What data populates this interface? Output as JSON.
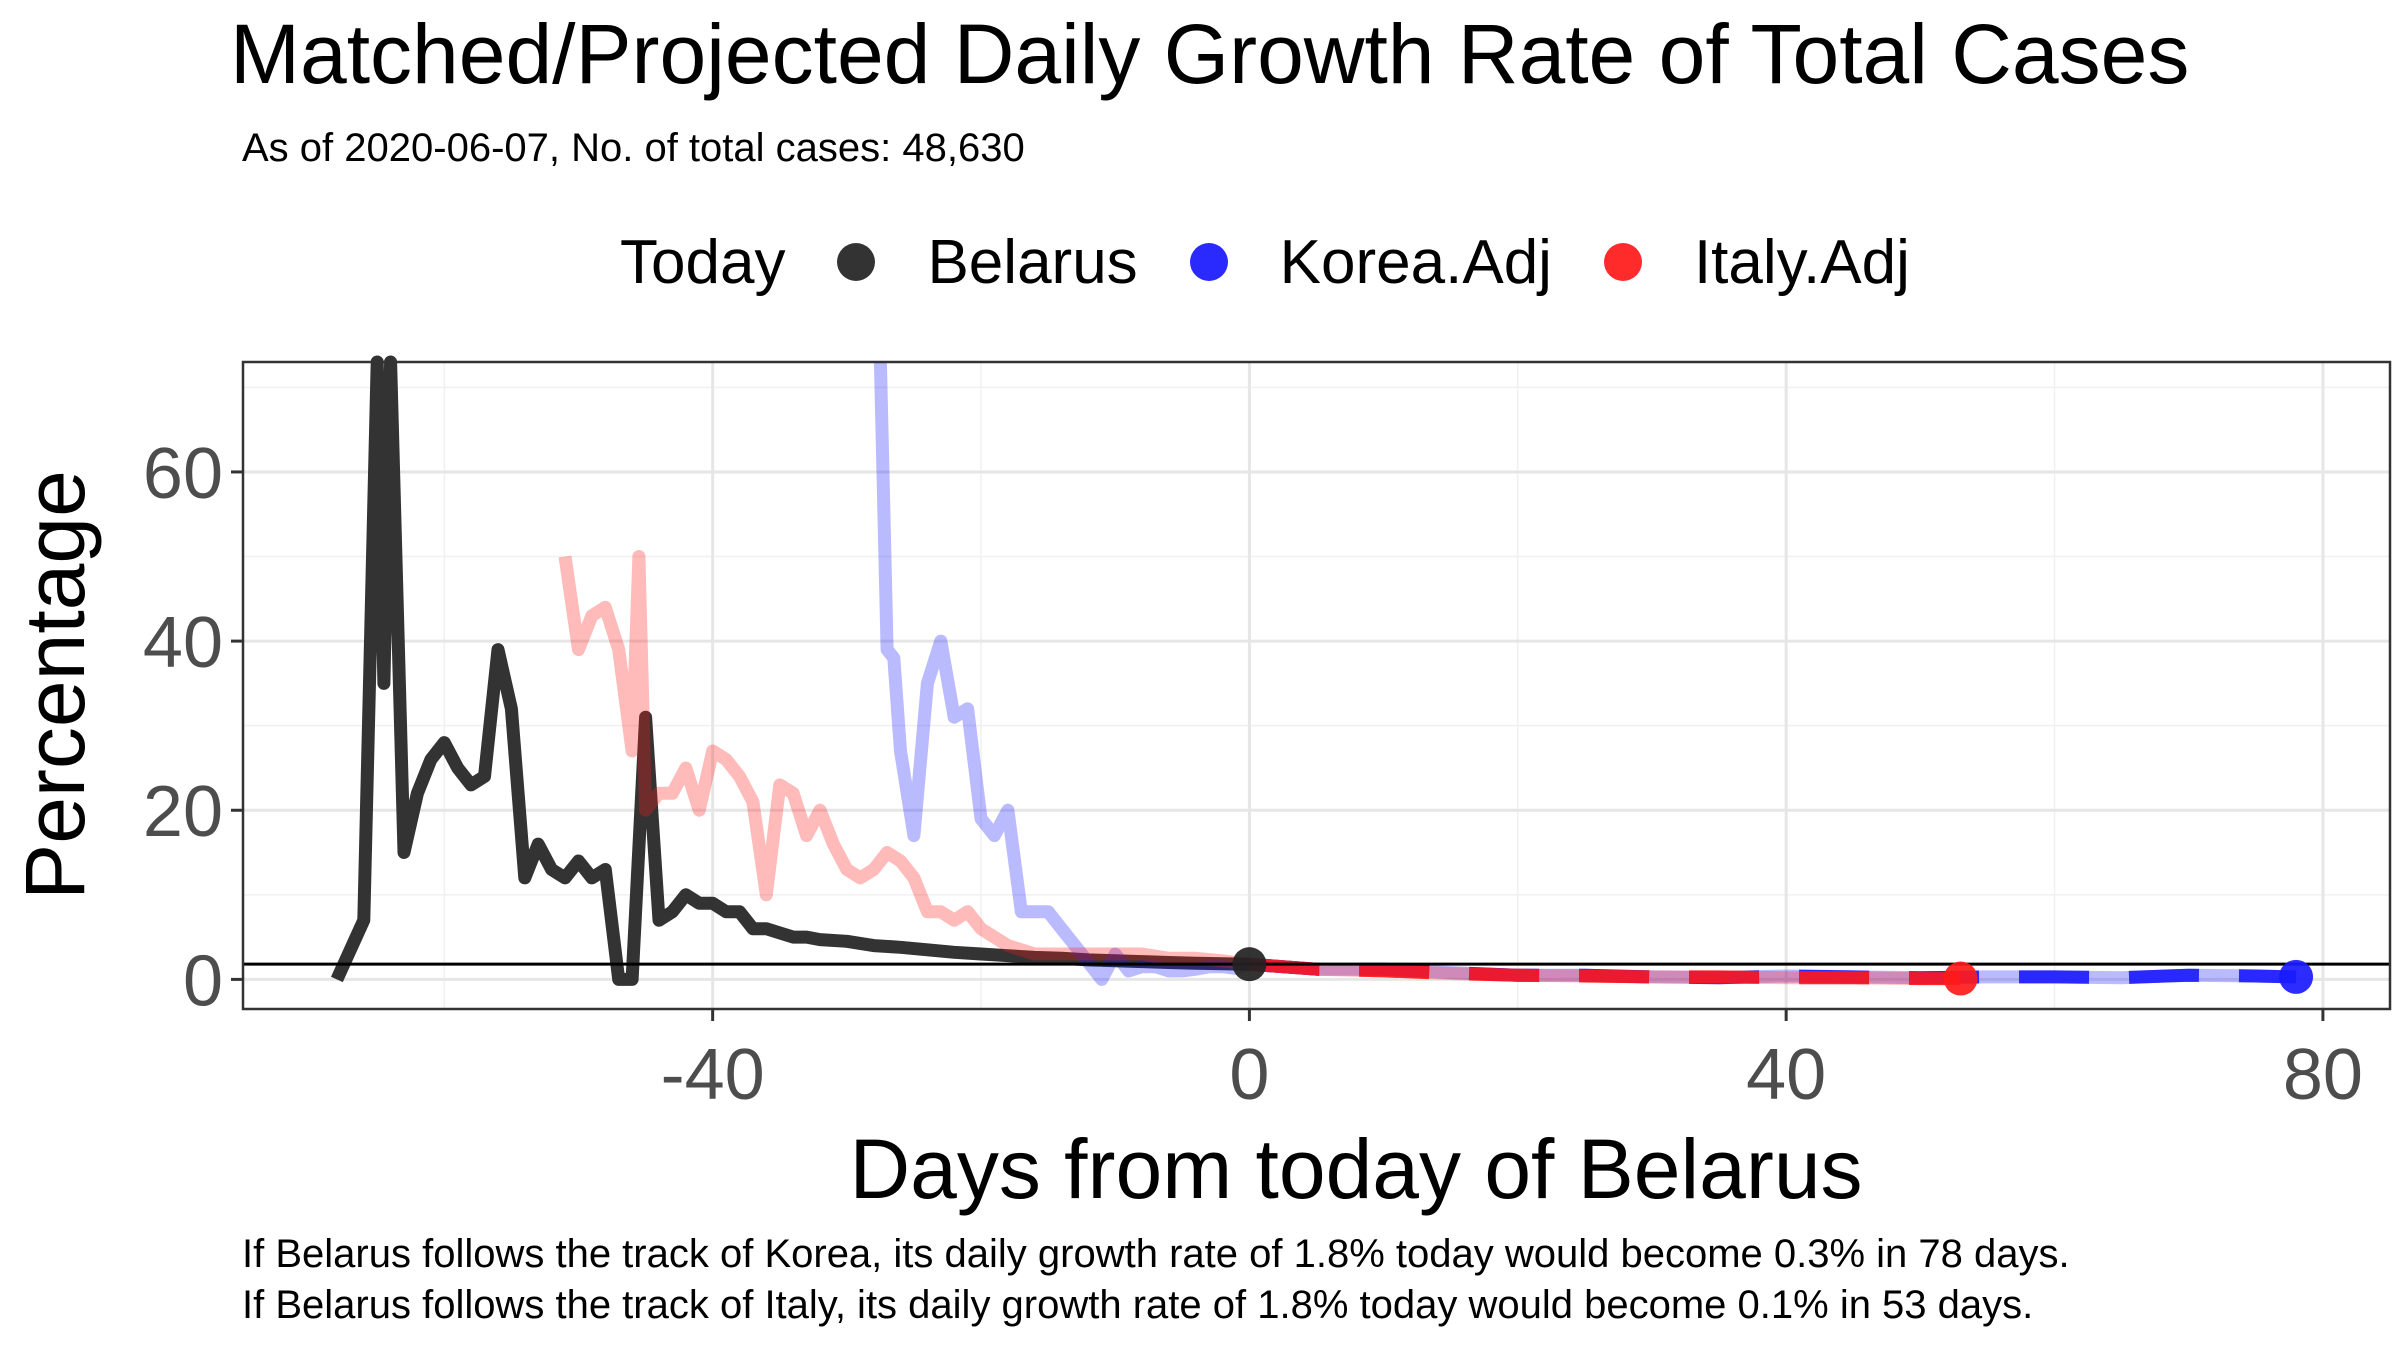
{
  "chart_data": {
    "type": "line",
    "title": "Matched/Projected Daily Growth Rate of Total Cases",
    "subtitle": "As of 2020-06-07, No. of total cases: 48,630",
    "xlabel": "Days from today of Belarus",
    "ylabel": "Percentage",
    "xlim": [
      -75,
      85
    ],
    "ylim": [
      -3.5,
      73
    ],
    "x_ticks": [
      -40,
      0,
      40,
      80
    ],
    "y_ticks": [
      0,
      20,
      40,
      60
    ],
    "x_tick_labels": [
      "-40",
      "0",
      "40",
      "80"
    ],
    "y_tick_labels": [
      "0",
      "20",
      "40",
      "60"
    ],
    "grid": true,
    "legend_position": "top",
    "legend_title": "Today",
    "hline": 1.8,
    "series": [
      {
        "name": "Belarus",
        "color": "#333333",
        "opacity": 1,
        "x": [
          -68,
          -66,
          -65,
          -64.5,
          -64,
          -63,
          -62,
          -61,
          -60,
          -59,
          -58,
          -57,
          -56,
          -55,
          -54,
          -53,
          -52,
          -51,
          -50,
          -49,
          -48,
          -47,
          -46,
          -45,
          -44,
          -43,
          -42,
          -41,
          -40,
          -39,
          -38,
          -37,
          -36,
          -35,
          -34,
          -33,
          -32,
          -30,
          -28,
          -26,
          -24,
          -22,
          -20,
          -18,
          -16,
          -14,
          -12,
          -10,
          -8,
          -6,
          -4,
          -2,
          0
        ],
        "values": [
          0,
          7,
          73,
          35,
          73,
          15,
          22,
          26,
          28,
          25,
          23,
          24,
          39,
          32,
          12,
          16,
          13,
          12,
          14,
          12,
          13,
          0,
          0,
          31,
          7,
          8,
          10,
          9,
          9,
          8,
          8,
          6,
          6,
          5.5,
          5,
          5,
          4.7,
          4.5,
          4,
          3.8,
          3.5,
          3.2,
          3.0,
          2.8,
          2.6,
          2.5,
          2.3,
          2.2,
          2.1,
          2.0,
          1.9,
          1.85,
          1.8
        ]
      },
      {
        "name": "Korea.Adj",
        "color": "#1a1aff",
        "opacity": 0.3,
        "x": [
          -27.5,
          -27,
          -26.5,
          -26,
          -25,
          -24,
          -23,
          -22,
          -21,
          -20,
          -19,
          -18,
          -17,
          -16,
          -15,
          -14,
          -13,
          -12,
          -11,
          -10,
          -9,
          -8,
          -7,
          -6,
          -5,
          -4,
          -3,
          -2,
          -1,
          0,
          5,
          10,
          15,
          20,
          25,
          30,
          35,
          40,
          45,
          50,
          55,
          60,
          65,
          70,
          75,
          78
        ],
        "values": [
          73,
          39,
          38,
          27,
          17,
          35,
          40,
          31,
          32,
          19,
          17,
          20,
          8,
          8,
          8,
          6,
          4,
          2,
          0,
          3,
          1,
          1.5,
          1.5,
          1,
          1,
          1.2,
          1.5,
          1.5,
          1.3,
          1.8,
          1.2,
          1.2,
          0.8,
          0.5,
          0.5,
          0.3,
          0.2,
          0.4,
          0.3,
          0.2,
          0.3,
          0.3,
          0.2,
          0.5,
          0.4,
          0.3
        ]
      },
      {
        "name": "Italy.Adj",
        "color": "#ff1a1a",
        "opacity": 0.3,
        "x": [
          -51,
          -50,
          -49,
          -48,
          -47,
          -46,
          -45.5,
          -45,
          -44,
          -43,
          -42,
          -41,
          -40,
          -39,
          -38,
          -37,
          -36,
          -35,
          -34,
          -33,
          -32,
          -31,
          -30,
          -29,
          -28,
          -27,
          -26,
          -25,
          -24,
          -23,
          -22,
          -21,
          -20,
          -18,
          -16,
          -14,
          -12,
          -10,
          -8,
          -6,
          -4,
          -2,
          0,
          5,
          10,
          15,
          20,
          25,
          30,
          35,
          40,
          45,
          50,
          53
        ],
        "values": [
          50,
          39,
          43,
          44,
          39,
          27,
          50,
          20,
          22,
          22,
          25,
          20,
          27,
          26,
          24,
          21,
          10,
          23,
          22,
          17,
          20,
          16,
          13,
          12,
          13,
          15,
          14,
          12,
          8,
          8,
          7,
          8,
          6,
          4,
          3,
          3,
          3,
          3,
          3,
          2.5,
          2.5,
          2.2,
          1.8,
          1.2,
          1,
          0.7,
          0.5,
          0.4,
          0.3,
          0.3,
          0.2,
          0.2,
          0.1,
          0.1
        ]
      },
      {
        "name": "Korea.Adj",
        "color": "#1a1aff",
        "opacity": 0.9,
        "projection": true,
        "x": [
          0,
          5,
          10,
          15,
          20,
          25,
          30,
          35,
          40,
          45,
          50,
          55,
          60,
          65,
          70,
          75,
          78
        ],
        "values": [
          1.8,
          1.2,
          1.2,
          0.8,
          0.5,
          0.5,
          0.3,
          0.2,
          0.4,
          0.3,
          0.2,
          0.3,
          0.3,
          0.2,
          0.5,
          0.4,
          0.3
        ]
      },
      {
        "name": "Italy.Adj",
        "color": "#ff1a1a",
        "opacity": 0.9,
        "projection": true,
        "x": [
          0,
          5,
          10,
          15,
          20,
          25,
          30,
          35,
          40,
          45,
          50,
          53
        ],
        "values": [
          1.8,
          1.2,
          1,
          0.7,
          0.5,
          0.4,
          0.3,
          0.3,
          0.2,
          0.2,
          0.1,
          0.1
        ]
      }
    ],
    "points": [
      {
        "name": "Belarus",
        "x": 0,
        "y": 1.8,
        "color": "#222222"
      },
      {
        "name": "Korea.Adj",
        "x": 78,
        "y": 0.3,
        "color": "#1a1aff"
      },
      {
        "name": "Italy.Adj",
        "x": 53,
        "y": 0.1,
        "color": "#ff1a1a"
      }
    ]
  },
  "legend": {
    "title": "Today",
    "items": [
      {
        "label": "Belarus",
        "color": "#333333"
      },
      {
        "label": "Korea.Adj",
        "color": "#2a2aff"
      },
      {
        "label": "Italy.Adj",
        "color": "#ff2a2a"
      }
    ]
  },
  "captions": [
    "If Belarus follows the track of Korea, its daily growth rate of 1.8% today would become 0.3% in 78 days.",
    "If Belarus follows the track of Italy, its daily growth rate of 1.8% today would become 0.1% in 53 days."
  ]
}
